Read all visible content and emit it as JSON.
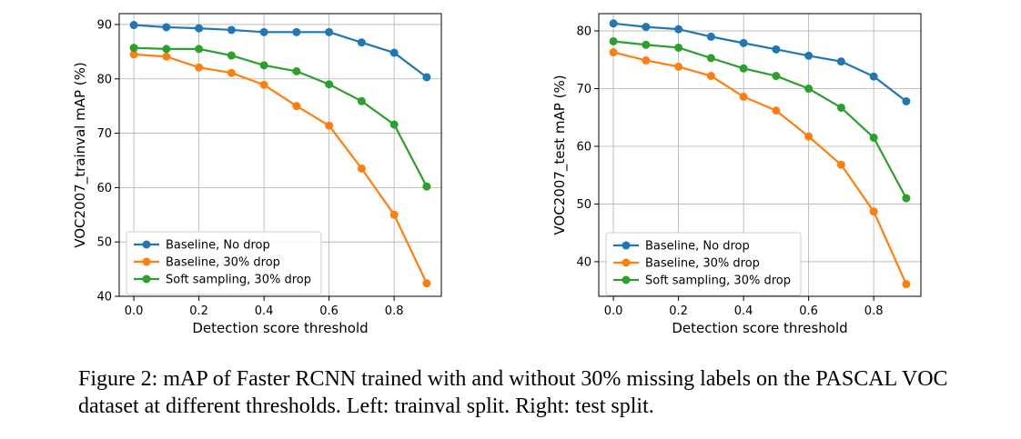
{
  "chart_data": [
    {
      "type": "line",
      "title": "",
      "xlabel": "Detection score threshold",
      "ylabel": "VOC2007_trainval mAP (%)",
      "xlim": [
        -0.045,
        0.945
      ],
      "ylim": [
        40,
        92
      ],
      "xticks": [
        0.0,
        0.2,
        0.4,
        0.6,
        0.8
      ],
      "xtick_labels": [
        "0.0",
        "0.2",
        "0.4",
        "0.6",
        "0.8"
      ],
      "yticks": [
        40,
        50,
        60,
        70,
        80,
        90
      ],
      "ytick_labels": [
        "40",
        "50",
        "60",
        "70",
        "80",
        "90"
      ],
      "grid": true,
      "legend_position": "lower-left",
      "x": [
        0.0,
        0.1,
        0.2,
        0.3,
        0.4,
        0.5,
        0.6,
        0.7,
        0.8,
        0.9
      ],
      "series": [
        {
          "name": "Baseline, No drop",
          "color": "#1f77b4",
          "values": [
            89.9,
            89.5,
            89.3,
            89.0,
            88.6,
            88.6,
            88.6,
            86.7,
            84.8,
            80.3
          ]
        },
        {
          "name": "Baseline, 30% drop",
          "color": "#ff7f0e",
          "values": [
            84.5,
            84.1,
            82.1,
            81.1,
            78.9,
            75.0,
            71.4,
            63.5,
            55.0,
            42.4
          ]
        },
        {
          "name": "Soft sampling, 30% drop",
          "color": "#2ca02c",
          "values": [
            85.7,
            85.5,
            85.5,
            84.3,
            82.5,
            81.4,
            79.0,
            75.9,
            71.6,
            60.2
          ]
        }
      ]
    },
    {
      "type": "line",
      "title": "",
      "xlabel": "Detection score threshold",
      "ylabel": "VOC2007_test mAP (%)",
      "xlim": [
        -0.045,
        0.945
      ],
      "ylim": [
        34,
        83
      ],
      "xticks": [
        0.0,
        0.2,
        0.4,
        0.6,
        0.8
      ],
      "xtick_labels": [
        "0.0",
        "0.2",
        "0.4",
        "0.6",
        "0.8"
      ],
      "yticks": [
        40,
        50,
        60,
        70,
        80
      ],
      "ytick_labels": [
        "40",
        "50",
        "60",
        "70",
        "80"
      ],
      "grid": true,
      "legend_position": "lower-left",
      "x": [
        0.0,
        0.1,
        0.2,
        0.3,
        0.4,
        0.5,
        0.6,
        0.7,
        0.8,
        0.9
      ],
      "series": [
        {
          "name": "Baseline, No drop",
          "color": "#1f77b4",
          "values": [
            81.3,
            80.7,
            80.3,
            79.0,
            77.9,
            76.8,
            75.7,
            74.7,
            72.1,
            67.8
          ]
        },
        {
          "name": "Baseline, 30% drop",
          "color": "#ff7f0e",
          "values": [
            76.3,
            74.9,
            73.8,
            72.2,
            68.6,
            66.2,
            61.7,
            56.8,
            48.7,
            36.1
          ]
        },
        {
          "name": "Soft sampling, 30% drop",
          "color": "#2ca02c",
          "values": [
            78.2,
            77.6,
            77.1,
            75.3,
            73.5,
            72.2,
            70.0,
            66.7,
            61.5,
            51.0
          ]
        }
      ]
    }
  ],
  "caption": {
    "line1": "Figure 2: mAP of Faster RCNN trained with and without 30% missing labels on the PASCAL VOC",
    "line2": "dataset at different thresholds. Left: trainval split. Right: test split."
  }
}
